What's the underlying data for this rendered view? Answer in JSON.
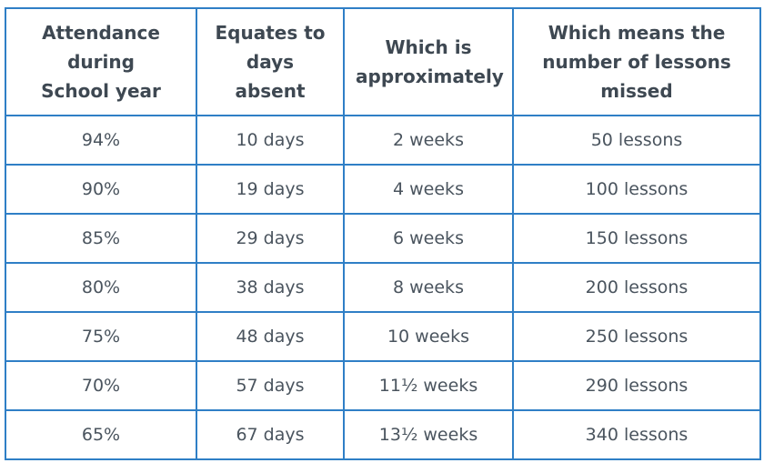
{
  "table": {
    "headers": [
      "Attendance during School year",
      "Equates to days absent",
      "Which is approximately",
      "Which means the number of lessons missed"
    ],
    "rows": [
      [
        "94%",
        "10 days",
        "2 weeks",
        "50 lessons"
      ],
      [
        "90%",
        "19 days",
        "4 weeks",
        "100 lessons"
      ],
      [
        "85%",
        "29 days",
        "6 weeks",
        "150 lessons"
      ],
      [
        "80%",
        "38 days",
        "8 weeks",
        "200 lessons"
      ],
      [
        "75%",
        "48 days",
        "10 weeks",
        "250 lessons"
      ],
      [
        "70%",
        "57 days",
        "11½ weeks",
        "290 lessons"
      ],
      [
        "65%",
        "67 days",
        "13½ weeks",
        "340 lessons"
      ]
    ]
  },
  "colors": {
    "border": "#2f7fc6",
    "text": "#4a545e"
  }
}
